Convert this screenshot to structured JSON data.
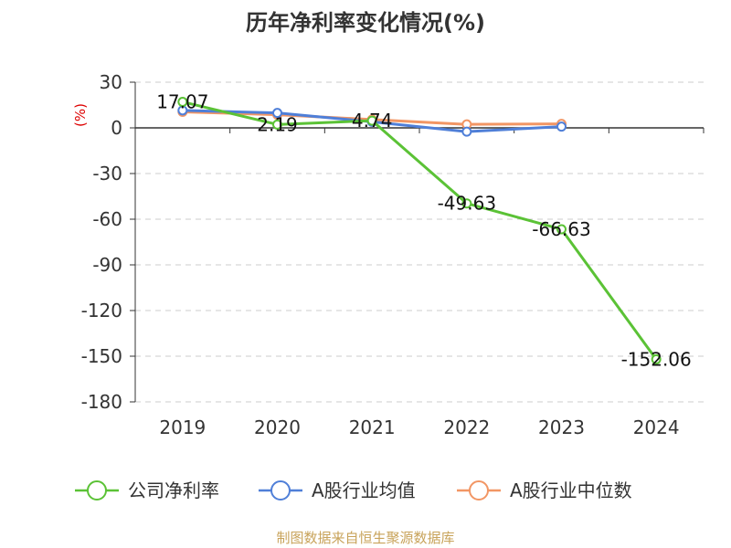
{
  "chart_data": {
    "type": "line",
    "title": "历年净利率变化情况(%)",
    "unit_label": "(%)",
    "categories": [
      "2019",
      "2020",
      "2021",
      "2022",
      "2023",
      "2024"
    ],
    "yticks": [
      "30",
      "0",
      "-30",
      "-60",
      "-90",
      "-120",
      "-150",
      "-180"
    ],
    "ylim": [
      -180,
      30
    ],
    "grid": true,
    "legend_position": "bottom",
    "series": [
      {
        "name": "公司净利率",
        "color": "#5bc236",
        "values": [
          17.07,
          2.19,
          4.74,
          -49.63,
          -66.63,
          -152.06
        ],
        "labels": [
          "17.07",
          "2.19",
          "4.74",
          "-49.63",
          "-66.63",
          "-152.06"
        ]
      },
      {
        "name": "A股行业均值",
        "color": "#4f7fd8",
        "values": [
          11.5,
          9.8,
          4.0,
          -2.5,
          0.8,
          null
        ]
      },
      {
        "name": "A股行业中位数",
        "color": "#f29664",
        "values": [
          10.5,
          8.6,
          5.5,
          2.3,
          2.6,
          null
        ]
      }
    ],
    "source": "制图数据来自恒生聚源数据库"
  }
}
